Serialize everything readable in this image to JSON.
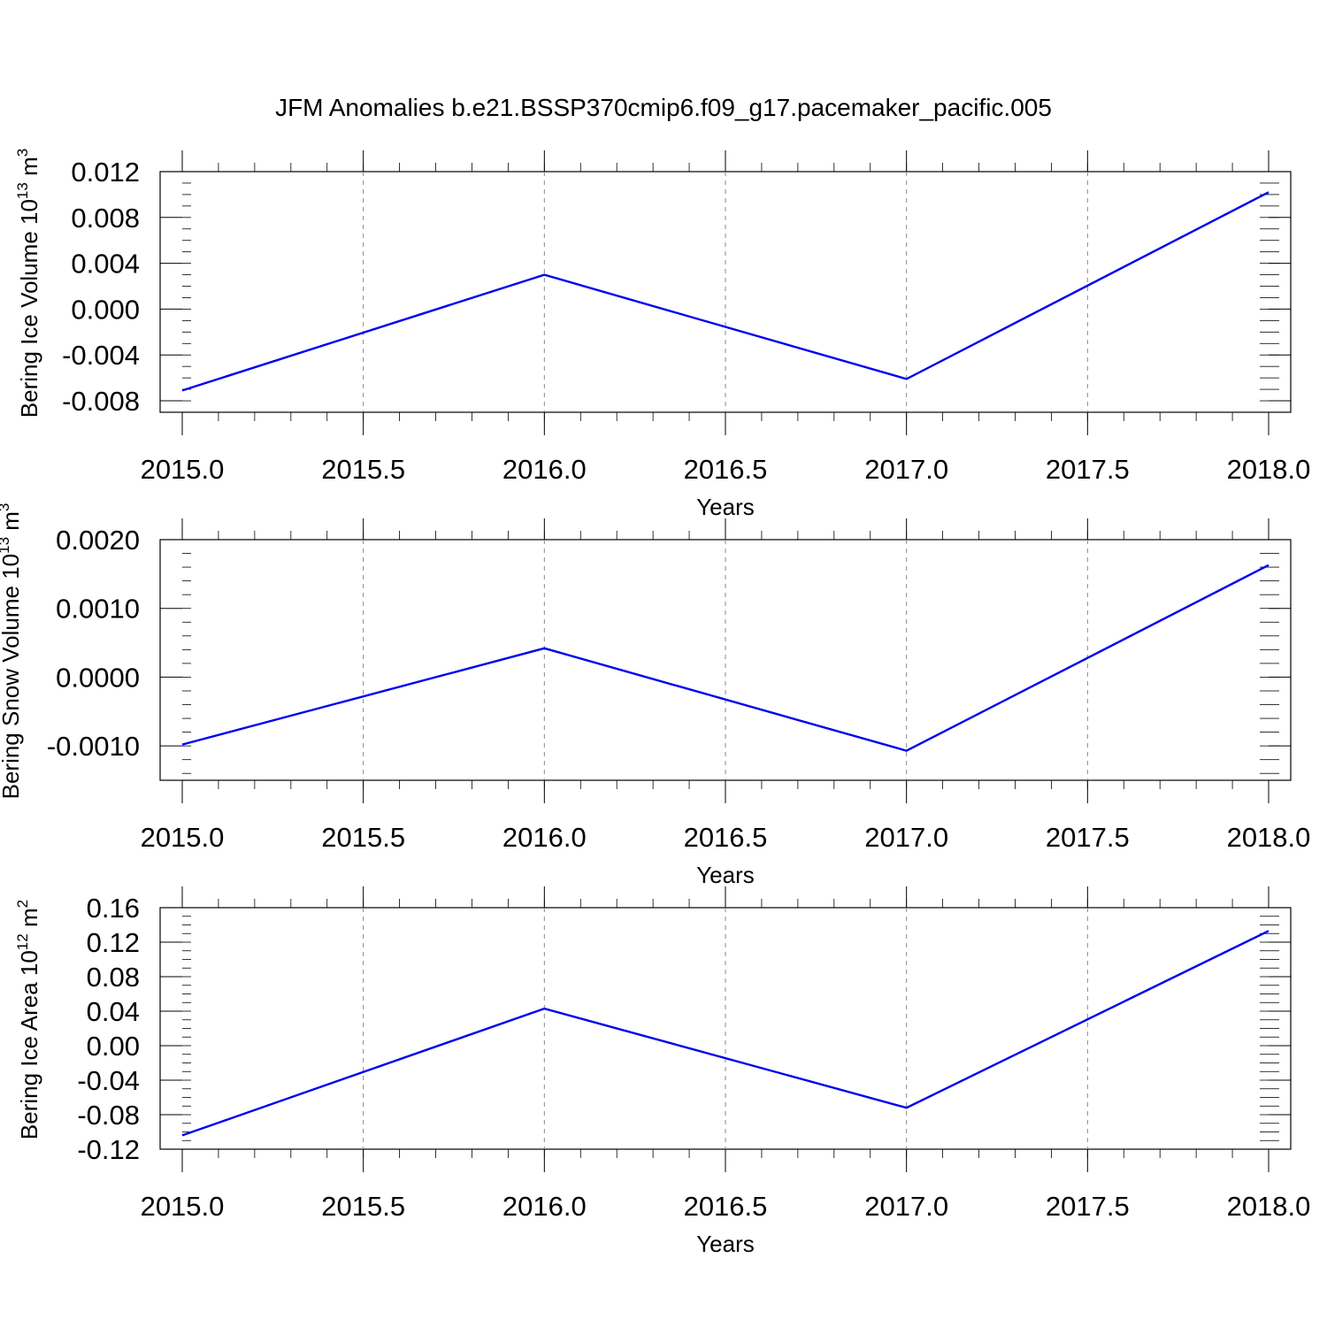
{
  "title": "JFM Anomalies b.e21.BSSP370cmip6.f09_g17.pacemaker_pacific.005",
  "line_color": "#0000ee",
  "chart_data": [
    {
      "type": "line",
      "xlabel": "Years",
      "ylabel": {
        "base": "Bering Ice Volume 10",
        "exp1": "13",
        "mid": " m",
        "exp2": "3"
      },
      "x": [
        2015.0,
        2016.0,
        2017.0,
        2018.0
      ],
      "xlim": [
        2015.0,
        2018.0
      ],
      "xticks": [
        "2015.0",
        "2015.5",
        "2016.0",
        "2016.5",
        "2017.0",
        "2017.5",
        "2018.0"
      ],
      "ylim": [
        -0.009,
        0.012
      ],
      "yticks": [
        "0.012",
        "0.008",
        "0.004",
        "0.000",
        "-0.004",
        "-0.008"
      ],
      "series": [
        {
          "values": [
            -0.0071,
            0.003,
            -0.0061,
            0.0102
          ]
        }
      ],
      "grid": "vertical dashed"
    },
    {
      "type": "line",
      "xlabel": "Years",
      "ylabel": {
        "base": "Bering Snow Volume 10",
        "exp1": "13",
        "mid": " m",
        "exp2": "3"
      },
      "x": [
        2015.0,
        2016.0,
        2017.0,
        2018.0
      ],
      "xlim": [
        2015.0,
        2018.0
      ],
      "xticks": [
        "2015.0",
        "2015.5",
        "2016.0",
        "2016.5",
        "2017.0",
        "2017.5",
        "2018.0"
      ],
      "ylim": [
        -0.0015,
        0.002
      ],
      "yticks": [
        "0.0020",
        "0.0010",
        "0.0000",
        "-0.0010"
      ],
      "series": [
        {
          "values": [
            -0.00098,
            0.00042,
            -0.00107,
            0.00163
          ]
        }
      ],
      "grid": "vertical dashed"
    },
    {
      "type": "line",
      "xlabel": "Years",
      "ylabel": {
        "base": "Bering Ice Area 10",
        "exp1": "12",
        "mid": " m",
        "exp2": "2"
      },
      "x": [
        2015.0,
        2016.0,
        2017.0,
        2018.0
      ],
      "xlim": [
        2015.0,
        2018.0
      ],
      "xticks": [
        "2015.0",
        "2015.5",
        "2016.0",
        "2016.5",
        "2017.0",
        "2017.5",
        "2018.0"
      ],
      "ylim": [
        -0.12,
        0.16
      ],
      "yticks": [
        "0.16",
        "0.12",
        "0.08",
        "0.04",
        "0.00",
        "-0.04",
        "-0.08",
        "-0.12"
      ],
      "series": [
        {
          "values": [
            -0.104,
            0.043,
            -0.072,
            0.133
          ]
        }
      ],
      "grid": "vertical dashed"
    }
  ]
}
